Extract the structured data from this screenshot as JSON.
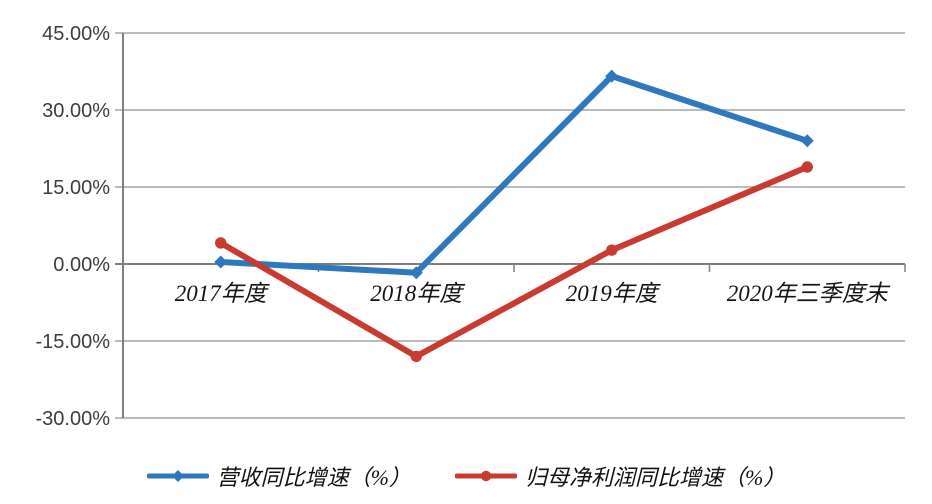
{
  "chart_data": {
    "type": "line",
    "title": "",
    "categories": [
      "2017年度",
      "2018年度",
      "2019年度",
      "2020年三季度末"
    ],
    "series": [
      {
        "name": "营收同比增速（%）",
        "color": "#2E79BD",
        "marker": "diamond",
        "values": [
          0.4,
          -1.7,
          36.6,
          24.0
        ]
      },
      {
        "name": "归母净利润同比增速（%）",
        "color": "#C93A31",
        "marker": "circle",
        "values": [
          4.1,
          -18.0,
          2.7,
          18.9
        ]
      }
    ],
    "y_axis": {
      "min": -30,
      "max": 45,
      "step": 15,
      "tick_labels": [
        "45.00%",
        "30.00%",
        "15.00%",
        "0.00%",
        "-15.00%",
        "-30.00%"
      ],
      "format": "percent"
    },
    "x_axis": {
      "label": "",
      "tick_marks_between_categories": true
    },
    "grid": true,
    "legend_position": "bottom",
    "colors": {
      "gridline": "#A3A3A3",
      "axis": "#7F7F7F",
      "y_tick_text": "#3d3d3d",
      "x_tick_text": "#141414",
      "background": "#ffffff"
    }
  }
}
